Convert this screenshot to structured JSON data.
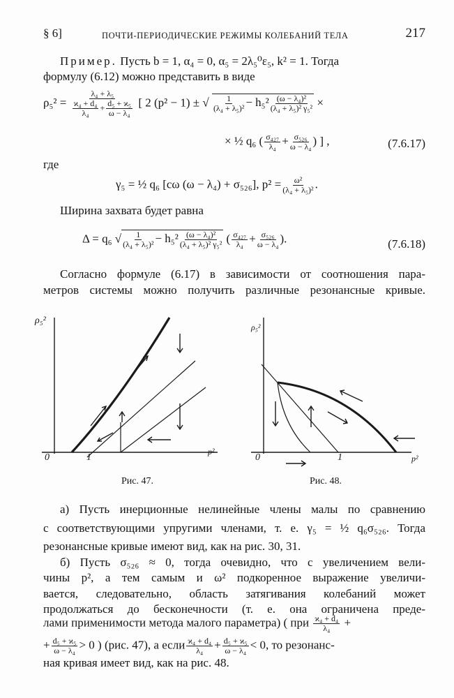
{
  "header": {
    "section": "§ 6]",
    "title": "ПОЧТИ-ПЕРИОДИЧЕСКИЕ РЕЖИМЫ КОЛЕБАНИЙ ТЕЛА",
    "page": "217"
  },
  "intro": {
    "line1a": "Пример.",
    "line1b": "Пусть b = 1,  α₄ = 0,  α₅ = 2λ₅⁰ε₅,  k² = 1.  Тогда",
    "line2": "формулу (6.12) можно представить в виде"
  },
  "eq1": {
    "lhs": "ρ₅² =",
    "num": "λ₄ + λ₅",
    "den1n": "ϰ₄ + d₄",
    "den1d": "λ₄",
    "den2n": "d₅ + ϰ₅",
    "den2d": "ω − λ₄",
    "b1": "[ 2 (p² − 1) ± √",
    "r1n": "1",
    "r1d": "(λ₄ + λ₅)²",
    "minus": "− h₅²",
    "r2n": "(ω − λ₄)²",
    "r2d": "(λ₄ + λ₅)² γ₅²",
    "times": "×",
    "l2a": "× ½ q₆ (",
    "s1n": "σ₄₂₇",
    "s1d": "λ₄",
    "s2n": "σ₅₂₆",
    "s2d": "ω − λ₄",
    "l2b": ") ] ,",
    "label": "(7.6.17)"
  },
  "where": "где",
  "eq2": {
    "a": "γ₅ = ½ q₆ [cω (ω − λ₄) + σ₅₂₆],    p² =",
    "pn": "ω²",
    "pd": "(λ₄ + λ₅)²",
    "end": "."
  },
  "width_text": "Ширина захвата будет равна",
  "eq3": {
    "a": "Δ = q₆ √",
    "r1n": "1",
    "r1d": "(λ₄ + λ₅)²",
    "minus": "− h₅²",
    "r2n": "(ω − λ₄)²",
    "r2d": "(λ₄ + λ₅)² γ₅²",
    "s1n": "σ₄₂₇",
    "s1d": "λ₄",
    "s2n": "σ₅₂₆",
    "s2d": "ω − λ₄",
    "label": "(7.6.18)"
  },
  "para1": [
    "Согласно формуле (6.17) в зависимости от соотношения пара-",
    "метров системы можно получить различные резонансные кривые."
  ],
  "fig47": {
    "ylabel": "ρ₅²",
    "xlabel": "p²",
    "origin": "0",
    "tick": "1",
    "caption": "Рис. 47."
  },
  "fig48": {
    "ylabel": "ρ₅²",
    "xlabel": "p²",
    "origin": "0",
    "tick": "1",
    "caption": "Рис. 48."
  },
  "para2": [
    "а) Пусть инерционные нелинейные члены малы по сравнению",
    "с соответствующими упругими членами, т. е.  γ₅ = ½ q₆σ₅₂₆.  Тогда",
    "резонансные кривые имеют вид, как на рис. 30, 31."
  ],
  "para3": [
    "б) Пусть  σ₅₂₆ ≈ 0,  тогда очевидно, что с увеличением вели-",
    "чины p²,  а  тем самым и ω² подкоренное выражение увеличи-",
    "вается, следовательно, область затягивания колебаний может",
    "продолжаться до бесконечности (т. е. она ограничена преде-"
  ],
  "para3b": {
    "a": "лами применимости метода малого параметра)  ( при",
    "f1n": "ϰ₄ + d₄",
    "f1d": "λ₄",
    "b": "+"
  },
  "para3c": {
    "a": "+",
    "f1n": "d₅ + ϰ₅",
    "f1d": "ω − λ₄",
    "b": "> 0 ) (рис. 47), а если",
    "f2n": "ϰ₄ + d₄",
    "f2d": "λ₄",
    "c": "+",
    "f3n": "d₅ + ϰ₅",
    "f3d": "ω − λ₄",
    "d": "< 0,   то   резонанс-"
  },
  "para3d": "ная кривая имеет вид, как на рис. 48."
}
